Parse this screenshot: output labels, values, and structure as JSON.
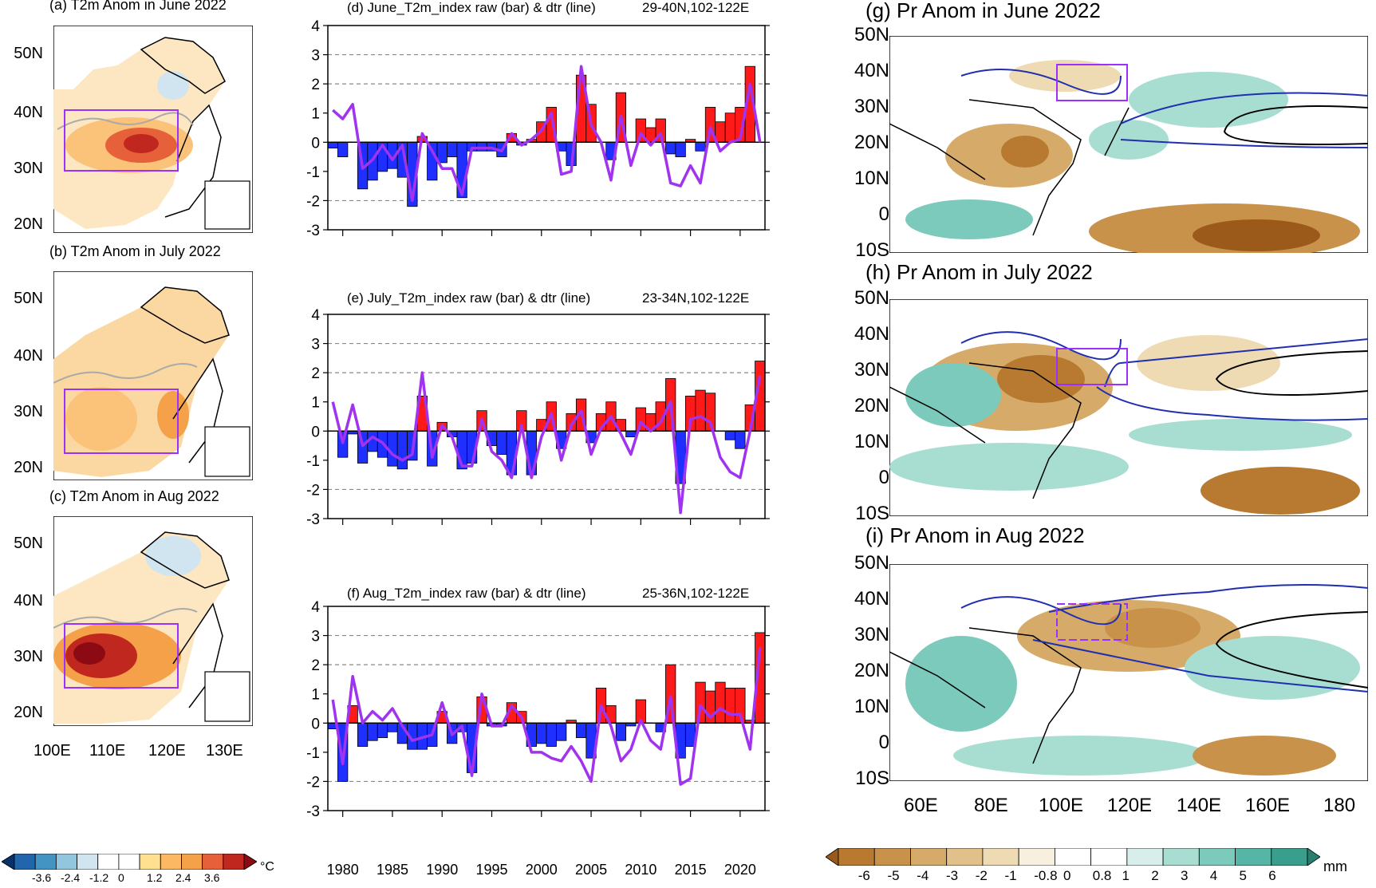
{
  "maps_t2m": [
    {
      "title": "(a) T2m Anom in June 2022",
      "lat_labels": [
        "50N",
        "40N",
        "30N",
        "20N"
      ]
    },
    {
      "title": "(b) T2m Anom in July 2022",
      "lat_labels": [
        "50N",
        "40N",
        "30N",
        "20N"
      ]
    },
    {
      "title": "(c) T2m Anom in Aug 2022",
      "lat_labels": [
        "50N",
        "40N",
        "30N",
        "20N"
      ]
    }
  ],
  "t2m_lon_labels": [
    "100E",
    "110E",
    "120E",
    "130E"
  ],
  "t2m_colorbar": {
    "labels": [
      "-3.6",
      "-2.4",
      "-1.2",
      "0",
      "1.2",
      "2.4",
      "3.6"
    ],
    "unit": "°C",
    "colors": [
      "#08306b",
      "#2166ac",
      "#4393c3",
      "#92c5de",
      "#d1e5f0",
      "#ffffff",
      "#ffffff",
      "#fee090",
      "#fdb863",
      "#f4a14a",
      "#e6603a",
      "#c0271e",
      "#8b0a14"
    ]
  },
  "maps_pr": [
    {
      "title": "(g) Pr Anom in June 2022",
      "lat_labels": [
        "50N",
        "40N",
        "30N",
        "20N",
        "10N",
        "0",
        "10S"
      ]
    },
    {
      "title": "(h) Pr Anom in July 2022",
      "lat_labels": [
        "50N",
        "40N",
        "30N",
        "20N",
        "10N",
        "0",
        "10S"
      ]
    },
    {
      "title": "(i) Pr Anom in Aug 2022",
      "lat_labels": [
        "50N",
        "40N",
        "30N",
        "20N",
        "10N",
        "0",
        "10S"
      ]
    }
  ],
  "pr_lon_labels": [
    "60E",
    "80E",
    "100E",
    "120E",
    "140E",
    "160E",
    "180"
  ],
  "pr_colorbar": {
    "labels": [
      "-6",
      "-5",
      "-4",
      "-3",
      "-2",
      "-1",
      "-0.8",
      "0",
      "0.8",
      "1",
      "2",
      "3",
      "4",
      "5",
      "6"
    ],
    "unit": "mm",
    "colors": [
      "#9c5a1a",
      "#b87a30",
      "#c8924a",
      "#d6aa68",
      "#e2c08a",
      "#eedbb4",
      "#f8f0de",
      "#ffffff",
      "#ffffff",
      "#d8eeea",
      "#a8ddd2",
      "#7ccabb",
      "#56b5a4",
      "#3a9e8c",
      "#27806f"
    ]
  },
  "chart_data": [
    {
      "type": "bar",
      "title": "(d) June_T2m_index raw (bar) & dtr (line)",
      "region": "29-40N,102-122E",
      "x": [
        1979,
        1980,
        1981,
        1982,
        1983,
        1984,
        1985,
        1986,
        1987,
        1988,
        1989,
        1990,
        1991,
        1992,
        1993,
        1994,
        1995,
        1996,
        1997,
        1998,
        1999,
        2000,
        2001,
        2002,
        2003,
        2004,
        2005,
        2006,
        2007,
        2008,
        2009,
        2010,
        2011,
        2012,
        2013,
        2014,
        2015,
        2016,
        2017,
        2018,
        2019,
        2020,
        2021,
        2022
      ],
      "series": [
        {
          "values": [
            -0.2,
            -0.5,
            0,
            -1.6,
            -1.3,
            -1.0,
            -0.9,
            -1.2,
            -2.2,
            0.2,
            -1.3,
            -0.7,
            -0.5,
            -1.9,
            -0.3,
            -0.3,
            -0.3,
            -0.5,
            0.3,
            -0.1,
            0.1,
            0.7,
            1.2,
            -0.3,
            -0.8,
            2.3,
            1.3,
            0,
            -0.6,
            1.7,
            0,
            0.8,
            0.5,
            0.8,
            -0.4,
            -0.5,
            0.1,
            -0.3,
            1.2,
            0.7,
            1.0,
            1.2,
            2.6,
            0
          ]
        },
        {
          "values": [
            1.1,
            0.8,
            1.3,
            -0.9,
            -0.6,
            -0.1,
            -0.6,
            -0.1,
            -2.0,
            0.3,
            -0.3,
            -0.9,
            -0.9,
            -1.8,
            -0.2,
            -0.2,
            -0.2,
            -0.3,
            0.3,
            -0.1,
            0.1,
            0.4,
            1.0,
            -1.1,
            -1.0,
            2.6,
            0.6,
            0.0,
            -1.3,
            0.9,
            -0.8,
            0.3,
            -0.1,
            0.3,
            -1.4,
            -1.5,
            -0.8,
            -1.4,
            0.5,
            -0.3,
            0.0,
            0.1,
            2.0,
            0
          ]
        }
      ],
      "yticks": [
        "4",
        "3",
        "2",
        "1",
        "0",
        "-1",
        "-2",
        "-3"
      ],
      "ylim": [
        -3,
        4
      ]
    },
    {
      "type": "bar",
      "title": "(e) July_T2m_index raw (bar) & dtr (line)",
      "region": "23-34N,102-122E",
      "x": [
        1979,
        1980,
        1981,
        1982,
        1983,
        1984,
        1985,
        1986,
        1987,
        1988,
        1989,
        1990,
        1991,
        1992,
        1993,
        1994,
        1995,
        1996,
        1997,
        1998,
        1999,
        2000,
        2001,
        2002,
        2003,
        2004,
        2005,
        2006,
        2007,
        2008,
        2009,
        2010,
        2011,
        2012,
        2013,
        2014,
        2015,
        2016,
        2017,
        2018,
        2019,
        2020,
        2021,
        2022
      ],
      "series": [
        {
          "values": [
            0,
            -0.9,
            -0.1,
            -1.1,
            -0.7,
            -0.9,
            -1.2,
            -1.3,
            -1.0,
            1.2,
            -1.2,
            0.3,
            -0.2,
            -1.3,
            -1.1,
            0.7,
            -0.5,
            -0.8,
            -1.5,
            0.7,
            -1.5,
            0.4,
            1.0,
            -0.6,
            0.6,
            1.1,
            -0.4,
            0.6,
            1.0,
            0.4,
            -0.2,
            0.8,
            0.6,
            1.0,
            1.8,
            -1.8,
            1.2,
            1.4,
            1.3,
            0,
            -0.3,
            -0.6,
            0.9,
            2.4
          ]
        },
        {
          "values": [
            1.0,
            -0.4,
            0.9,
            -0.5,
            -0.2,
            -0.4,
            -0.8,
            -1.0,
            -0.8,
            2.0,
            -0.9,
            0.2,
            -0.2,
            -1.2,
            -1.2,
            0.4,
            -0.7,
            -1.0,
            -1.6,
            0.2,
            -1.6,
            -0.2,
            0.6,
            -1.0,
            0.2,
            0.7,
            -0.8,
            0.1,
            0.5,
            -0.1,
            -0.8,
            0.3,
            0.0,
            0.3,
            1.0,
            -2.8,
            0.4,
            0.5,
            0.3,
            -0.9,
            -1.4,
            -1.6,
            0.0,
            1.9
          ]
        }
      ],
      "yticks": [
        "4",
        "3",
        "2",
        "1",
        "0",
        "-1",
        "-2",
        "-3"
      ],
      "ylim": [
        -3,
        4
      ]
    },
    {
      "type": "bar",
      "title": "(f) Aug_T2m_index raw (bar) & dtr (line)",
      "region": "25-36N,102-122E",
      "x": [
        1979,
        1980,
        1981,
        1982,
        1983,
        1984,
        1985,
        1986,
        1987,
        1988,
        1989,
        1990,
        1991,
        1992,
        1993,
        1994,
        1995,
        1996,
        1997,
        1998,
        1999,
        2000,
        2001,
        2002,
        2003,
        2004,
        2005,
        2006,
        2007,
        2008,
        2009,
        2010,
        2011,
        2012,
        2013,
        2014,
        2015,
        2016,
        2017,
        2018,
        2019,
        2020,
        2021,
        2022
      ],
      "series": [
        {
          "values": [
            -0.2,
            -2.0,
            0.6,
            -0.8,
            -0.6,
            -0.5,
            -0.3,
            -0.7,
            -0.9,
            -0.9,
            -0.8,
            0.4,
            -0.7,
            -0.3,
            -1.7,
            0.9,
            -0.1,
            -0.1,
            0.7,
            0.4,
            -0.8,
            -0.7,
            -0.8,
            -0.6,
            0.1,
            -0.5,
            -1.2,
            1.2,
            0.6,
            -0.6,
            -0.1,
            0.8,
            0,
            -0.3,
            2.0,
            -1.2,
            -0.8,
            1.4,
            1.1,
            1.4,
            1.2,
            1.2,
            0.1,
            3.1
          ]
        },
        {
          "values": [
            0.8,
            -1.4,
            1.6,
            0.0,
            0.4,
            0.1,
            0.5,
            -0.1,
            -0.6,
            -0.5,
            -0.4,
            0.7,
            -0.4,
            -0.1,
            -1.8,
            1.0,
            -0.1,
            -0.1,
            0.6,
            0.2,
            -1.0,
            -1.0,
            -1.2,
            -1.3,
            -0.8,
            -1.3,
            -2.0,
            0.6,
            -0.1,
            -1.3,
            -0.9,
            0.1,
            -0.6,
            -0.9,
            0.9,
            -2.1,
            -1.9,
            0.6,
            0.2,
            0.5,
            0.3,
            0.3,
            -0.9,
            2.6
          ]
        }
      ],
      "yticks": [
        "4",
        "3",
        "2",
        "1",
        "0",
        "-1",
        "-2",
        "-3"
      ],
      "ylim": [
        -3,
        4
      ]
    }
  ],
  "year_labels": [
    "1980",
    "1985",
    "1990",
    "1995",
    "2000",
    "2005",
    "2010",
    "2015",
    "2020"
  ]
}
